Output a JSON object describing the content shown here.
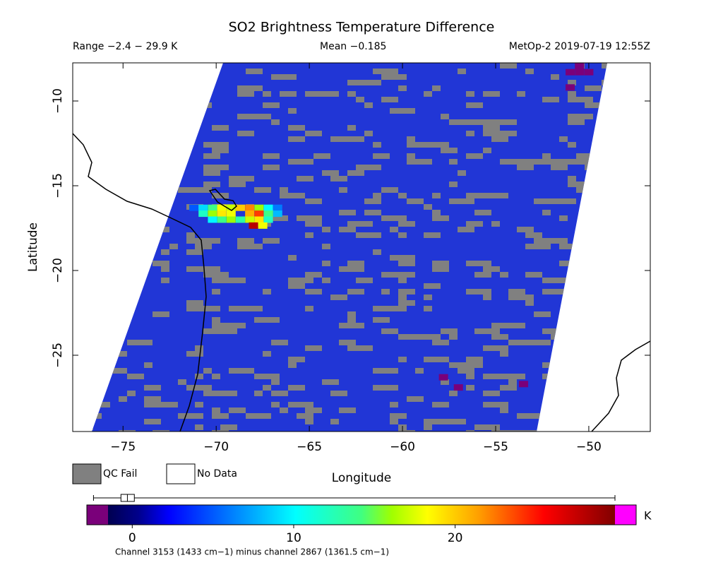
{
  "title": "SO2 Brightness Temperature Difference",
  "range_text": "Range −2.4 − 29.9 K",
  "mean_text": "Mean −0.185",
  "source_text": "MetOp-2 2019-07-19 12:55Z",
  "map": {
    "xlabel": "Longitude",
    "ylabel": "Latitude",
    "xlim": [
      -77.7,
      -46.7
    ],
    "ylim": [
      -29.5,
      -7.75
    ],
    "xticks": [
      {
        "value": -75,
        "label": "−75"
      },
      {
        "value": -70,
        "label": "−70"
      },
      {
        "value": -65,
        "label": "−65"
      },
      {
        "value": -60,
        "label": "−60"
      },
      {
        "value": -55,
        "label": "−55"
      },
      {
        "value": -50,
        "label": "−50"
      }
    ],
    "yticks": [
      {
        "value": -10,
        "label": "−10"
      },
      {
        "value": -15,
        "label": "−15"
      },
      {
        "value": -20,
        "label": "−20"
      },
      {
        "value": -25,
        "label": "−25"
      }
    ],
    "cells": [
      {
        "lon": -71.2,
        "lat": -16.3,
        "value": 5
      },
      {
        "lon": -70.7,
        "lat": -16.3,
        "value": 9
      },
      {
        "lon": -70.2,
        "lat": -16.3,
        "value": 14
      },
      {
        "lon": -69.7,
        "lat": -16.3,
        "value": 18
      },
      {
        "lon": -69.2,
        "lat": -16.3,
        "value": 17
      },
      {
        "lon": -68.7,
        "lat": -16.3,
        "value": 20
      },
      {
        "lon": -68.2,
        "lat": -16.3,
        "value": 22
      },
      {
        "lon": -67.7,
        "lat": -16.3,
        "value": 16
      },
      {
        "lon": -67.2,
        "lat": -16.3,
        "value": 10
      },
      {
        "lon": -66.7,
        "lat": -16.3,
        "value": 6
      },
      {
        "lon": -70.7,
        "lat": -16.65,
        "value": 12
      },
      {
        "lon": -70.2,
        "lat": -16.65,
        "value": 16
      },
      {
        "lon": -69.7,
        "lat": -16.65,
        "value": 19
      },
      {
        "lon": -69.2,
        "lat": -16.65,
        "value": 18
      },
      {
        "lon": -68.2,
        "lat": -16.65,
        "value": 21
      },
      {
        "lon": -67.7,
        "lat": -16.65,
        "value": 24
      },
      {
        "lon": -67.2,
        "lat": -16.65,
        "value": 14
      },
      {
        "lon": -66.7,
        "lat": -16.65,
        "value": 8
      },
      {
        "lon": -70.2,
        "lat": -17.0,
        "value": 10
      },
      {
        "lon": -69.7,
        "lat": -17.0,
        "value": 14
      },
      {
        "lon": -69.2,
        "lat": -17.0,
        "value": 16
      },
      {
        "lon": -68.7,
        "lat": -17.0,
        "value": 13
      },
      {
        "lon": -68.2,
        "lat": -17.0,
        "value": 17
      },
      {
        "lon": -67.7,
        "lat": -17.0,
        "value": 19
      },
      {
        "lon": -67.2,
        "lat": -17.0,
        "value": 12
      },
      {
        "lon": -68.0,
        "lat": -17.35,
        "value": 28
      },
      {
        "lon": -67.5,
        "lat": -17.35,
        "value": 18
      },
      {
        "lon": -51.0,
        "lat": -8.3,
        "value": -2
      },
      {
        "lon": -50.5,
        "lat": -8.3,
        "value": -2
      },
      {
        "lon": -50.0,
        "lat": -8.3,
        "value": -2
      },
      {
        "lon": -51.0,
        "lat": -9.2,
        "value": -2
      },
      {
        "lon": -50.5,
        "lat": -7.95,
        "value": -2
      },
      {
        "lon": -57.8,
        "lat": -26.3,
        "value": -2
      },
      {
        "lon": -57.0,
        "lat": -26.9,
        "value": -2
      },
      {
        "lon": -53.5,
        "lat": -26.7,
        "value": -2
      }
    ]
  },
  "legend": [
    "QC Fail",
    "No Data"
  ],
  "colorbar": {
    "lim": [
      -1.5,
      29.9
    ],
    "ticks": [
      0,
      10,
      20
    ],
    "unit": "K",
    "caption": "Channel 3153 (1433 cm−1) minus channel 2867 (1361.5 cm−1)",
    "boxplot": {
      "min": -2.4,
      "q1": -0.7,
      "median": -0.3,
      "q3": 0.13,
      "max": 29.9
    }
  }
}
